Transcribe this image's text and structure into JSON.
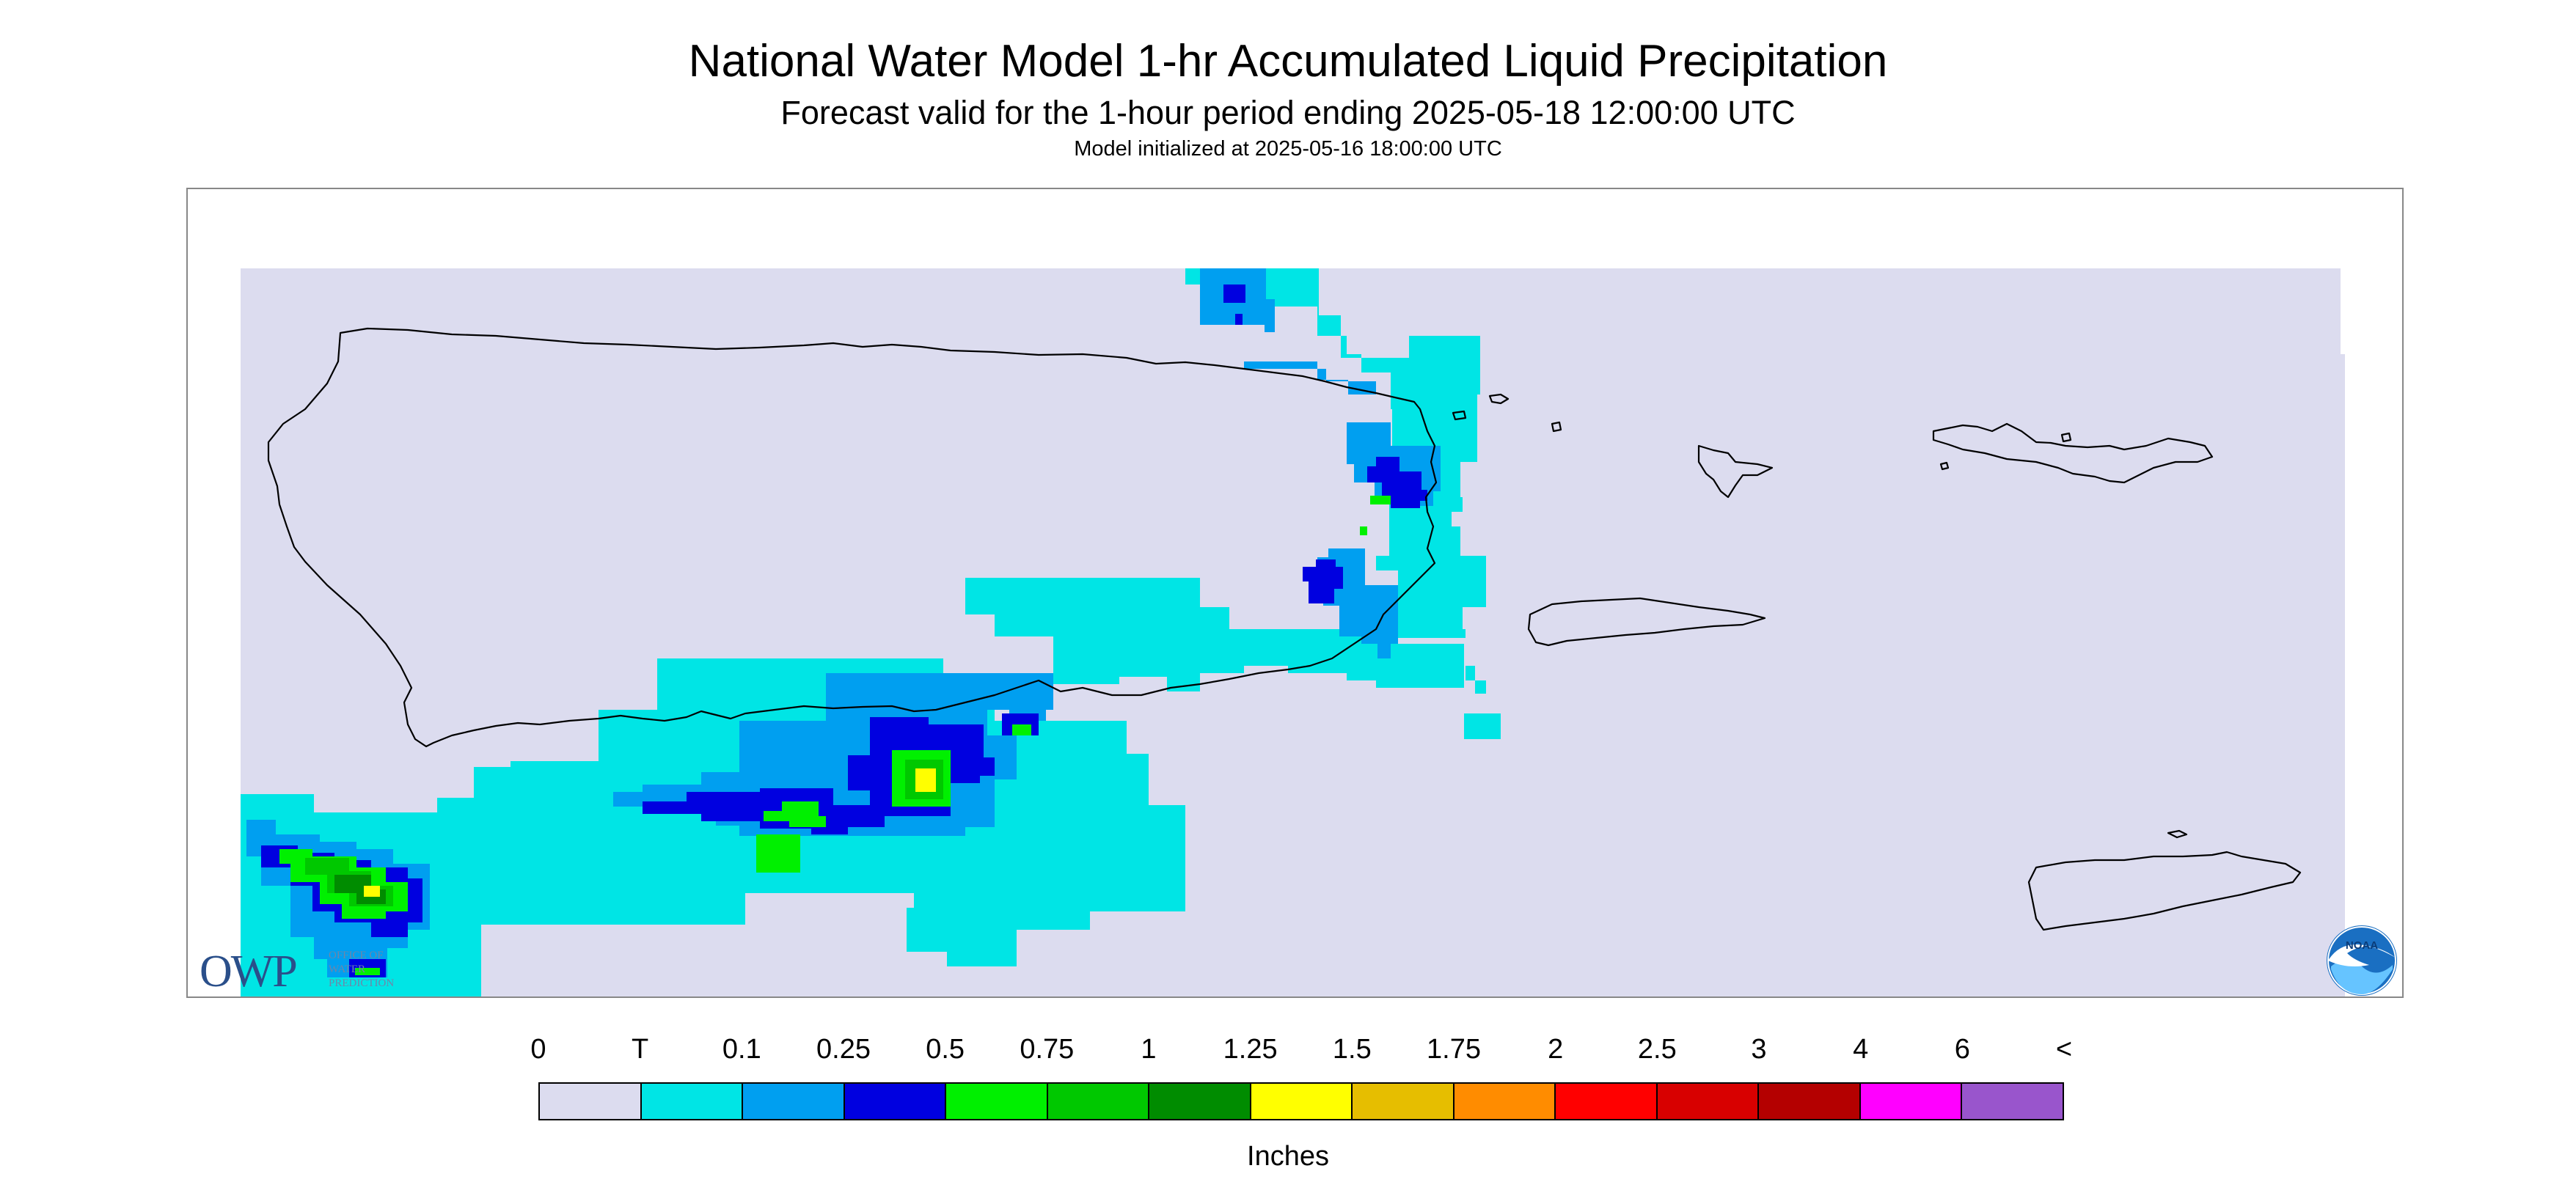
{
  "title": "National Water Model 1-hr Accumulated Liquid Precipitation",
  "subtitle": "Forecast valid for the 1-hour period ending 2025-05-18 12:00:00 UTC",
  "init_line": "Model initialized at 2025-05-16 18:00:00 UTC",
  "owp_logo": {
    "text": "OWP",
    "subtext": [
      "OFFICE OF",
      "WATER",
      "PREDICTION"
    ]
  },
  "noaa_logo": {
    "text": "NOAA"
  },
  "legend": {
    "units": "Inches",
    "ticks": [
      "0",
      "T",
      "0.1",
      "0.25",
      "0.5",
      "0.75",
      "1",
      "1.25",
      "1.5",
      "1.75",
      "2",
      "2.5",
      "3",
      "4",
      "6",
      "<"
    ],
    "colors": [
      "#dcdcef",
      "#00e5e5",
      "#009ff0",
      "#0000e0",
      "#00f000",
      "#00c800",
      "#008c00",
      "#ffff00",
      "#e6be00",
      "#ff8c00",
      "#ff0000",
      "#d80000",
      "#b40000",
      "#ff00ff",
      "#9955cc"
    ]
  },
  "map": {
    "background_color": "#dcdcef",
    "coast_color": "#000000",
    "precip_colors": {
      "trace": "#00e5e5",
      "light": "#009ff0",
      "moderate": "#0000e0",
      "heavy": "#00f000",
      "heavier": "#00c800",
      "dark": "#008c00",
      "max": "#ffff00"
    }
  }
}
